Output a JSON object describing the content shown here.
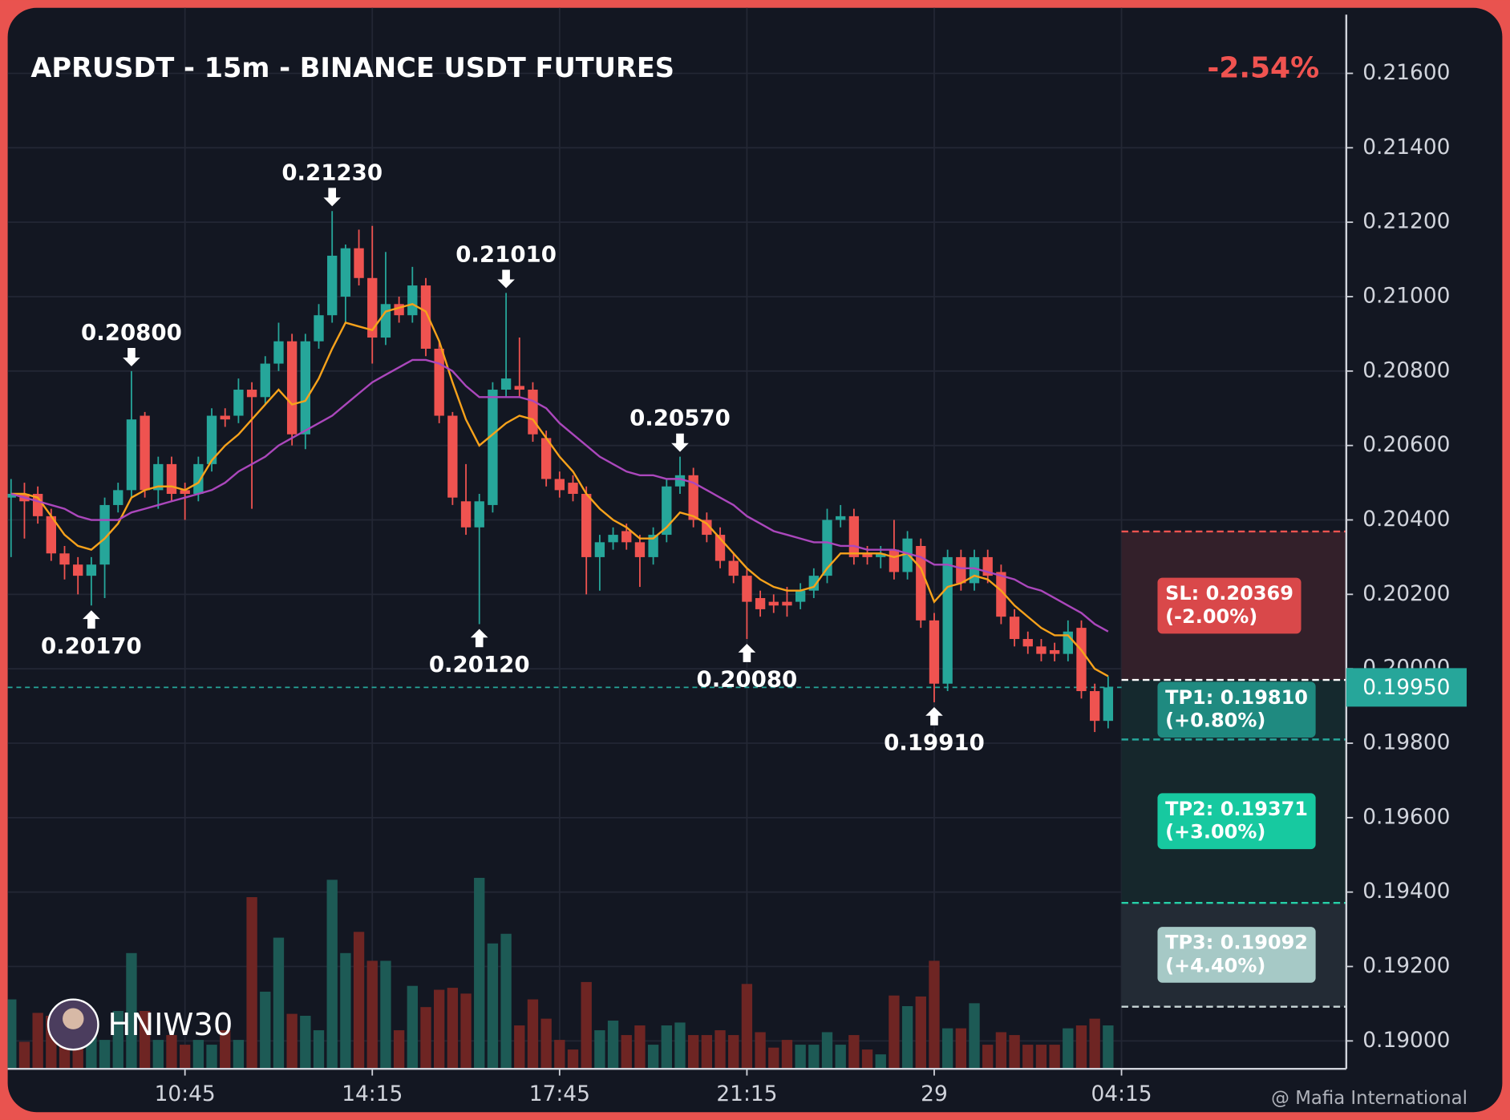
{
  "chart_data": {
    "type": "candlestick",
    "title": "APRUSDT - 15m - BINANCE USDT FUTURES",
    "change": "-2.54%",
    "author": "HNIW30",
    "watermark": "@ Mafia International",
    "up_color": "#26a69a",
    "down_color": "#ef5350",
    "grid": true,
    "xlim": [
      -0.25,
      99.8
    ],
    "ylim": [
      0.18925,
      0.21776
    ],
    "yticks": [
      {
        "value": 0.216,
        "label": "0.21600"
      },
      {
        "value": 0.214,
        "label": "0.21400"
      },
      {
        "value": 0.212,
        "label": "0.21200"
      },
      {
        "value": 0.21,
        "label": "0.21000"
      },
      {
        "value": 0.208,
        "label": "0.20800"
      },
      {
        "value": 0.206,
        "label": "0.20600"
      },
      {
        "value": 0.204,
        "label": "0.20400"
      },
      {
        "value": 0.202,
        "label": "0.20200"
      },
      {
        "value": 0.2,
        "label": "0.20000"
      },
      {
        "value": 0.198,
        "label": "0.19800"
      },
      {
        "value": 0.196,
        "label": "0.19600"
      },
      {
        "value": 0.194,
        "label": "0.19400"
      },
      {
        "value": 0.192,
        "label": "0.19200"
      },
      {
        "value": 0.19,
        "label": "0.19000"
      }
    ],
    "xticks": [
      {
        "value": 13,
        "label": "10:45"
      },
      {
        "value": 27,
        "label": "14:15"
      },
      {
        "value": 41,
        "label": "17:45"
      },
      {
        "value": 55,
        "label": "21:15"
      },
      {
        "value": 69,
        "label": "29"
      },
      {
        "value": 83,
        "label": "04:15"
      }
    ],
    "open": [
      0.2046,
      0.2047,
      0.2047,
      0.2041,
      0.2031,
      0.2028,
      0.2025,
      0.2028,
      0.2044,
      0.2048,
      0.2068,
      0.2048,
      0.2055,
      0.2048,
      0.2047,
      0.2055,
      0.2068,
      0.2068,
      0.2075,
      0.2073,
      0.2082,
      0.2088,
      0.2063,
      0.2088,
      0.2095,
      0.21,
      0.2113,
      0.2105,
      0.2089,
      0.2098,
      0.2095,
      0.2103,
      0.2086,
      0.2068,
      0.2045,
      0.2038,
      0.2044,
      0.2075,
      0.2076,
      0.2075,
      0.2062,
      0.2051,
      0.205,
      0.2047,
      0.203,
      0.2034,
      0.2037,
      0.2034,
      0.203,
      0.2036,
      0.2049,
      0.2052,
      0.204,
      0.2036,
      0.2029,
      0.2025,
      0.2019,
      0.2018,
      0.2018,
      0.2018,
      0.2021,
      0.2025,
      0.204,
      0.2041,
      0.2031,
      0.203,
      0.2032,
      0.2026,
      0.2033,
      0.2013,
      0.1996,
      0.203,
      0.2023,
      0.203,
      0.2026,
      0.2014,
      0.2008,
      0.2006,
      0.2005,
      0.2004,
      0.2011,
      0.1994,
      0.1986
    ],
    "high": [
      0.2051,
      0.205,
      0.2049,
      0.2043,
      0.2033,
      0.203,
      0.203,
      0.2046,
      0.205,
      0.208,
      0.2069,
      0.2057,
      0.2057,
      0.205,
      0.2057,
      0.207,
      0.207,
      0.2078,
      0.2077,
      0.2084,
      0.2093,
      0.209,
      0.209,
      0.2098,
      0.2123,
      0.2114,
      0.2118,
      0.2119,
      0.2112,
      0.21,
      0.2108,
      0.2105,
      0.2088,
      0.2069,
      0.2055,
      0.2047,
      0.2077,
      0.2101,
      0.2089,
      0.2077,
      0.2064,
      0.2053,
      0.2052,
      0.2049,
      0.2036,
      0.2038,
      0.2039,
      0.2036,
      0.2038,
      0.2051,
      0.2057,
      0.2054,
      0.2042,
      0.2038,
      0.2031,
      0.2027,
      0.2021,
      0.202,
      0.2022,
      0.2023,
      0.2027,
      0.2043,
      0.2044,
      0.2043,
      0.2033,
      0.2033,
      0.204,
      0.2037,
      0.2035,
      0.2015,
      0.2032,
      0.2032,
      0.2032,
      0.2032,
      0.2028,
      0.2016,
      0.201,
      0.2008,
      0.2007,
      0.2013,
      0.2013,
      0.1996,
      0.1998
    ],
    "low": [
      0.203,
      0.2035,
      0.2039,
      0.2029,
      0.2024,
      0.202,
      0.2017,
      0.2019,
      0.2042,
      0.2046,
      0.2046,
      0.2043,
      0.2045,
      0.204,
      0.2045,
      0.2053,
      0.2065,
      0.2066,
      0.2043,
      0.2071,
      0.208,
      0.206,
      0.2059,
      0.2086,
      0.2093,
      0.2093,
      0.2103,
      0.2082,
      0.2087,
      0.2093,
      0.2093,
      0.2084,
      0.2066,
      0.2044,
      0.2036,
      0.2012,
      0.2042,
      0.2073,
      0.2073,
      0.2061,
      0.2049,
      0.2046,
      0.2045,
      0.202,
      0.2021,
      0.2032,
      0.2032,
      0.2022,
      0.2028,
      0.2034,
      0.2047,
      0.2038,
      0.2034,
      0.2027,
      0.2023,
      0.2008,
      0.2014,
      0.2015,
      0.2014,
      0.2016,
      0.2019,
      0.2023,
      0.2038,
      0.2028,
      0.2028,
      0.2027,
      0.2024,
      0.2024,
      0.2011,
      0.1991,
      0.1994,
      0.2021,
      0.2021,
      0.2023,
      0.2012,
      0.2006,
      0.2004,
      0.2002,
      0.2002,
      0.2002,
      0.1992,
      0.1983,
      0.1984
    ],
    "close": [
      0.2047,
      0.2045,
      0.2041,
      0.2031,
      0.2028,
      0.2025,
      0.2028,
      0.2044,
      0.2048,
      0.2067,
      0.2048,
      0.2055,
      0.2047,
      0.2047,
      0.2055,
      0.2068,
      0.2067,
      0.2075,
      0.2073,
      0.2082,
      0.2088,
      0.2063,
      0.2088,
      0.2095,
      0.2111,
      0.2113,
      0.2105,
      0.2089,
      0.2098,
      0.2095,
      0.2103,
      0.2086,
      0.2068,
      0.2046,
      0.2038,
      0.2045,
      0.2075,
      0.2078,
      0.2075,
      0.2063,
      0.2051,
      0.2048,
      0.2047,
      0.203,
      0.2034,
      0.2036,
      0.2034,
      0.203,
      0.2036,
      0.2049,
      0.2052,
      0.204,
      0.2036,
      0.2029,
      0.2025,
      0.2018,
      0.2016,
      0.2017,
      0.2017,
      0.2021,
      0.2025,
      0.204,
      0.2041,
      0.203,
      0.203,
      0.2031,
      0.2026,
      0.2035,
      0.2013,
      0.1996,
      0.203,
      0.2023,
      0.203,
      0.2025,
      0.2014,
      0.2008,
      0.2006,
      0.2004,
      0.2004,
      0.201,
      0.1994,
      0.1986,
      0.1995
    ],
    "lines": [
      {
        "color": "#f7a21b",
        "values": [
          0.2047,
          0.2047,
          0.2046,
          0.2041,
          0.2036,
          0.2033,
          0.2032,
          0.2035,
          0.2039,
          0.2046,
          0.2048,
          0.2049,
          0.2049,
          0.2048,
          0.205,
          0.2056,
          0.206,
          0.2063,
          0.2067,
          0.2071,
          0.2075,
          0.2071,
          0.2072,
          0.2078,
          0.2086,
          0.2093,
          0.2092,
          0.2091,
          0.2096,
          0.2097,
          0.2098,
          0.2096,
          0.2088,
          0.2077,
          0.2067,
          0.206,
          0.2063,
          0.2066,
          0.2068,
          0.2067,
          0.2062,
          0.2057,
          0.2053,
          0.2047,
          0.2043,
          0.204,
          0.2038,
          0.2035,
          0.2035,
          0.2038,
          0.2042,
          0.2041,
          0.2039,
          0.2035,
          0.2031,
          0.2027,
          0.2024,
          0.2022,
          0.2021,
          0.2021,
          0.2022,
          0.2027,
          0.2031,
          0.2031,
          0.2031,
          0.2031,
          0.203,
          0.2031,
          0.2027,
          0.2018,
          0.2022,
          0.2023,
          0.2025,
          0.2024,
          0.2021,
          0.2017,
          0.2014,
          0.2011,
          0.2009,
          0.2009,
          0.2005,
          0.2,
          0.1998
        ]
      },
      {
        "color": "#ab47bc",
        "values": [
          0.2047,
          0.2046,
          0.2045,
          0.2044,
          0.2043,
          0.2041,
          0.204,
          0.204,
          0.204,
          0.2042,
          0.2043,
          0.2044,
          0.2045,
          0.2046,
          0.2047,
          0.2048,
          0.205,
          0.2053,
          0.2055,
          0.2057,
          0.206,
          0.2062,
          0.2064,
          0.2066,
          0.2068,
          0.2071,
          0.2074,
          0.2077,
          0.2079,
          0.2081,
          0.2083,
          0.2083,
          0.2082,
          0.208,
          0.2076,
          0.2073,
          0.2073,
          0.2073,
          0.2073,
          0.2072,
          0.207,
          0.2066,
          0.2063,
          0.206,
          0.2057,
          0.2055,
          0.2053,
          0.2052,
          0.2052,
          0.2051,
          0.2051,
          0.205,
          0.2048,
          0.2046,
          0.2044,
          0.2041,
          0.2039,
          0.2037,
          0.2036,
          0.2035,
          0.2034,
          0.2034,
          0.2033,
          0.2033,
          0.2032,
          0.2032,
          0.2032,
          0.2031,
          0.203,
          0.2028,
          0.2028,
          0.2027,
          0.2027,
          0.2026,
          0.2025,
          0.2024,
          0.2022,
          0.2021,
          0.2019,
          0.2017,
          0.2015,
          0.2012,
          0.201
        ]
      }
    ],
    "volume": {
      "up_color": "#1d5a55",
      "down_color": "#6e2523",
      "ylim": [
        0,
        1100
      ],
      "values": [
        72,
        28,
        58,
        55,
        55,
        40,
        45,
        30,
        60,
        120,
        60,
        30,
        35,
        25,
        30,
        25,
        40,
        30,
        178,
        80,
        136,
        57,
        55,
        40,
        196,
        120,
        142,
        112,
        112,
        40,
        86,
        64,
        82,
        84,
        78,
        198,
        130,
        140,
        45,
        72,
        52,
        30,
        20,
        90,
        40,
        50,
        35,
        45,
        25,
        45,
        48,
        35,
        35,
        40,
        35,
        88,
        38,
        22,
        30,
        25,
        25,
        38,
        25,
        35,
        20,
        15,
        76,
        65,
        75,
        112,
        42,
        42,
        68,
        25,
        38,
        35,
        25,
        25,
        25,
        42,
        45,
        52,
        45
      ]
    },
    "annotations": [
      {
        "x": 9,
        "value": 0.208,
        "label": "0.20800",
        "position": "above"
      },
      {
        "x": 6,
        "value": 0.2017,
        "label": "0.20170",
        "position": "below"
      },
      {
        "x": 24,
        "value": 0.2123,
        "label": "0.21230",
        "position": "above"
      },
      {
        "x": 37,
        "value": 0.2101,
        "label": "0.21010",
        "position": "above"
      },
      {
        "x": 35,
        "value": 0.2012,
        "label": "0.20120",
        "position": "below"
      },
      {
        "x": 50,
        "value": 0.2057,
        "label": "0.20570",
        "position": "above"
      },
      {
        "x": 55,
        "value": 0.2008,
        "label": "0.20080",
        "position": "below"
      },
      {
        "x": 69,
        "value": 0.1991,
        "label": "0.19910",
        "position": "below"
      }
    ],
    "last_price": {
      "value": 0.1995,
      "label": "0.19950",
      "color": "#26a69a"
    },
    "trade": {
      "start_x": 83,
      "entry": 0.1997,
      "levels": [
        {
          "value": 0.20369,
          "label": "SL: 0.20369",
          "note": "(-2.00%)",
          "color": "#d9484a",
          "line": "#f05350",
          "zone": "#33202a"
        },
        {
          "value": 0.1981,
          "label": "TP1: 0.19810",
          "note": "(+0.80%)",
          "color": "#1f8a80",
          "line": "#26a69a",
          "zone": "#15292e"
        },
        {
          "value": 0.19371,
          "label": "TP2: 0.19371",
          "note": "(+3.00%)",
          "color": "#17c9a0",
          "line": "#26d0a8",
          "zone": "#16272c"
        },
        {
          "value": 0.19092,
          "label": "TP3: 0.19092",
          "note": "(+4.40%)",
          "color": "#a6c9c6",
          "line": "#c8d6d6",
          "zone": "#232b35"
        }
      ]
    }
  }
}
